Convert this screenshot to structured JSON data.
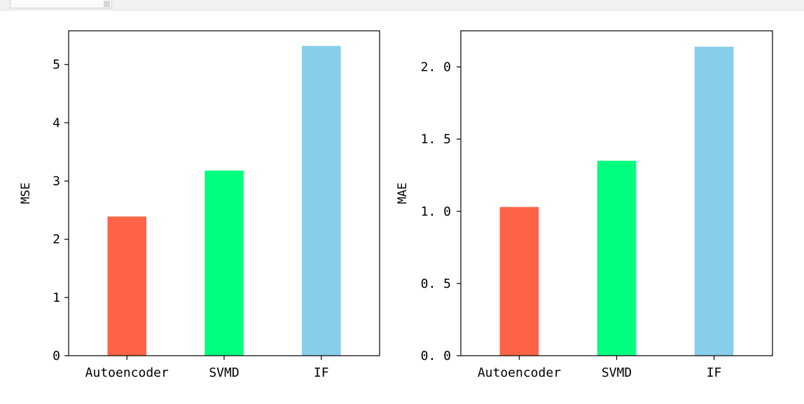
{
  "chart_data": [
    {
      "type": "bar",
      "categories": [
        "Autoencoder",
        "SVMD",
        "IF"
      ],
      "values": [
        2.39,
        3.18,
        5.32
      ],
      "colors": [
        "#ff6347",
        "#00ff7f",
        "#87ceeb"
      ],
      "xlabel": "",
      "ylabel": "MSE",
      "ylim": [
        0,
        5.58
      ],
      "yticks": [
        0,
        1,
        2,
        3,
        4,
        5
      ],
      "ytick_labels": [
        "0",
        "1",
        "2",
        "3",
        "4",
        "5"
      ],
      "grid": false
    },
    {
      "type": "bar",
      "categories": [
        "Autoencoder",
        "SVMD",
        "IF"
      ],
      "values": [
        1.03,
        1.35,
        2.14
      ],
      "colors": [
        "#ff6347",
        "#00ff7f",
        "#87ceeb"
      ],
      "xlabel": "",
      "ylabel": "MAE",
      "ylim": [
        0,
        2.25
      ],
      "yticks": [
        0,
        0.5,
        1.0,
        1.5,
        2.0
      ],
      "ytick_labels": [
        "0. 0",
        "0. 5",
        "1. 0",
        "1. 5",
        "2. 0"
      ],
      "grid": false
    }
  ]
}
